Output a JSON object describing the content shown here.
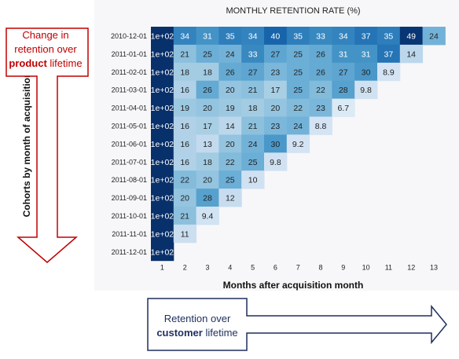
{
  "chart_data": {
    "type": "heatmap",
    "title": "MONTHLY RETENTION RATE (%)",
    "xlabel": "Months after acquisition month",
    "ylabel": "Cohorts by month of acquisition",
    "x": [
      1,
      2,
      3,
      4,
      5,
      6,
      7,
      8,
      9,
      10,
      11,
      12,
      13
    ],
    "y": [
      "2010-12-01",
      "2011-01-01",
      "2011-02-01",
      "2011-03-01",
      "2011-04-01",
      "2011-05-01",
      "2011-06-01",
      "2011-07-01",
      "2011-08-01",
      "2011-09-01",
      "2011-10-01",
      "2011-11-01",
      "2011-12-01"
    ],
    "first_column_label": "1e+02",
    "first_column_value": 100,
    "values": [
      [
        100,
        34,
        31,
        35,
        34,
        40,
        35,
        33,
        34,
        37,
        35,
        49,
        24
      ],
      [
        100,
        21,
        25,
        24,
        33,
        27,
        25,
        26,
        31,
        31,
        37,
        14,
        null
      ],
      [
        100,
        18,
        18,
        26,
        27,
        23,
        25,
        26,
        27,
        30,
        8.9,
        null,
        null
      ],
      [
        100,
        16,
        26,
        20,
        21,
        17,
        25,
        22,
        28,
        9.8,
        null,
        null,
        null
      ],
      [
        100,
        19,
        20,
        19,
        18,
        20,
        22,
        23,
        6.7,
        null,
        null,
        null,
        null
      ],
      [
        100,
        16,
        17,
        14,
        21,
        23,
        24,
        8.8,
        null,
        null,
        null,
        null,
        null
      ],
      [
        100,
        16,
        13,
        20,
        24,
        30,
        9.2,
        null,
        null,
        null,
        null,
        null,
        null
      ],
      [
        100,
        16,
        18,
        22,
        25,
        9.8,
        null,
        null,
        null,
        null,
        null,
        null,
        null
      ],
      [
        100,
        22,
        20,
        25,
        10,
        null,
        null,
        null,
        null,
        null,
        null,
        null,
        null
      ],
      [
        100,
        20,
        28,
        12,
        null,
        null,
        null,
        null,
        null,
        null,
        null,
        null,
        null
      ],
      [
        100,
        21,
        9.4,
        null,
        null,
        null,
        null,
        null,
        null,
        null,
        null,
        null,
        null
      ],
      [
        100,
        11,
        null,
        null,
        null,
        null,
        null,
        null,
        null,
        null,
        null,
        null,
        null
      ],
      [
        100,
        null,
        null,
        null,
        null,
        null,
        null,
        null,
        null,
        null,
        null,
        null,
        null
      ]
    ],
    "colormap": "Blues",
    "color_range": [
      0,
      50
    ]
  },
  "annotations": {
    "product": {
      "line1": "Change in",
      "line2": "retention over",
      "line3_bold": "product",
      "line3_rest": " lifetime"
    },
    "customer": {
      "line1": "Retention over",
      "line2_bold": "customer",
      "line2_rest": " lifetime"
    }
  },
  "colors": {
    "product_arrow": "#c00000",
    "customer_arrow": "#1f2f5f"
  }
}
